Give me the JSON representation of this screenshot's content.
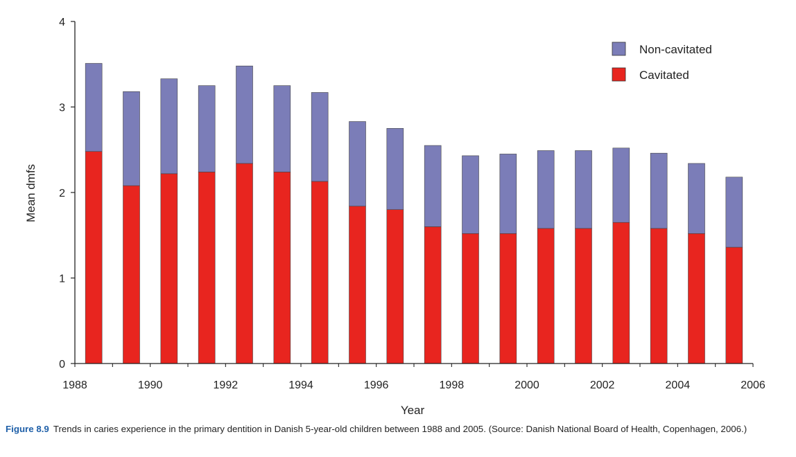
{
  "chart_data": {
    "type": "bar",
    "stacked": true,
    "xlabel": "Year",
    "ylabel": "Mean dmfs",
    "ylim": [
      0,
      4
    ],
    "xlim": [
      1988,
      2006
    ],
    "yticks": [
      "0",
      "1",
      "2",
      "3",
      "4"
    ],
    "xticks": [
      "1988",
      "1990",
      "1992",
      "1994",
      "1996",
      "1998",
      "2000",
      "2002",
      "2004",
      "2006"
    ],
    "categories": [
      "1988",
      "1989",
      "1990",
      "1991",
      "1992",
      "1993",
      "1994",
      "1995",
      "1996",
      "1997",
      "1998",
      "1999",
      "2000",
      "2001",
      "2002",
      "2003",
      "2004",
      "2005"
    ],
    "legend_position": "top-right",
    "grid": false,
    "series": [
      {
        "name": "Cavitated",
        "color": "#e8251f",
        "values": [
          2.48,
          2.08,
          2.22,
          2.24,
          2.34,
          2.24,
          2.13,
          1.84,
          1.8,
          1.6,
          1.52,
          1.52,
          1.58,
          1.58,
          1.65,
          1.58,
          1.52,
          1.36
        ]
      },
      {
        "name": "Non-cavitated",
        "color": "#7b7db8",
        "values": [
          1.03,
          1.1,
          1.11,
          1.01,
          1.14,
          1.01,
          1.04,
          0.99,
          0.95,
          0.95,
          0.91,
          0.93,
          0.91,
          0.91,
          0.87,
          0.88,
          0.82,
          0.82
        ]
      }
    ]
  },
  "caption": {
    "label": "Figure 8.9",
    "text": "Trends in caries experience in the primary dentition in Danish 5-year-old children between 1988 and 2005. (Source: Danish National Board of Health, Copenhagen, 2006.)"
  }
}
